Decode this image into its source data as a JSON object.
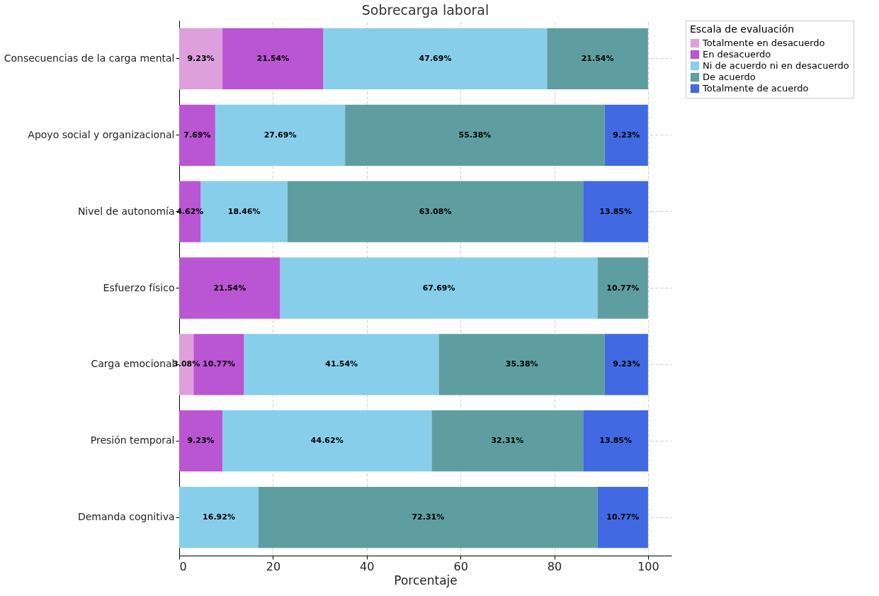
{
  "chart_data": {
    "type": "bar",
    "title": "Sobrecarga laboral",
    "xlabel": "Porcentaje",
    "legend_title": "Escala de evaluación",
    "orientation": "horizontal",
    "stacked": true,
    "categories": [
      "Consecuencias de la carga mental",
      "Apoyo social y organizacional",
      "Nivel de autonomía",
      "Esfuerzo físico",
      "Carga emocional",
      "Presión temporal",
      "Demanda cognitiva"
    ],
    "series": [
      {
        "name": "Totalmente en desacuerdo",
        "color": "#dda0dd",
        "values": [
          9.23,
          null,
          null,
          null,
          3.08,
          null,
          null
        ],
        "value_labels": [
          "9.23%",
          null,
          null,
          null,
          "3.08%",
          null,
          null
        ]
      },
      {
        "name": "En desacuerdo",
        "color": "#ba55d3",
        "values": [
          21.54,
          7.69,
          4.62,
          21.54,
          10.77,
          9.23,
          null
        ],
        "value_labels": [
          "21.54%",
          "7.69%",
          "4.62%",
          "21.54%",
          "10.77%",
          "9.23%",
          null
        ]
      },
      {
        "name": "Ni de acuerdo ni en desacuerdo",
        "color": "#87ceeb",
        "values": [
          47.69,
          27.69,
          18.46,
          67.69,
          41.54,
          44.62,
          16.92
        ],
        "value_labels": [
          "47.69%",
          "27.69%",
          "18.46%",
          "67.69%",
          "41.54%",
          "44.62%",
          "16.92%"
        ]
      },
      {
        "name": "De acuerdo",
        "color": "#5f9ea0",
        "values": [
          21.54,
          55.38,
          63.08,
          10.77,
          35.38,
          32.31,
          72.31
        ],
        "value_labels": [
          "21.54%",
          "55.38%",
          "63.08%",
          "10.77%",
          "35.38%",
          "32.31%",
          "72.31%"
        ]
      },
      {
        "name": "Totalmente de acuerdo",
        "color": "#4169e1",
        "values": [
          null,
          9.23,
          13.85,
          null,
          9.23,
          13.85,
          10.77
        ],
        "value_labels": [
          null,
          "9.23%",
          "13.85%",
          null,
          "9.23%",
          "13.85%",
          "10.77%"
        ]
      }
    ],
    "xlim": [
      0,
      105
    ],
    "xticks": [
      0,
      20,
      40,
      60,
      80,
      100
    ],
    "grid": true,
    "legend": "top right"
  }
}
